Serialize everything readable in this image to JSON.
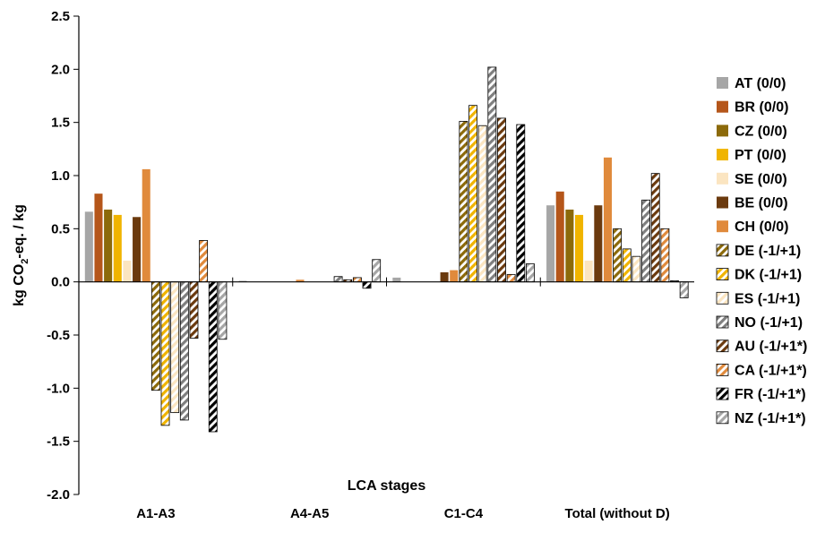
{
  "chart_data": {
    "type": "bar",
    "title": "",
    "xlabel": "LCA stages",
    "ylabel": "kg CO₂-eq. / kg",
    "ylabel_parts": {
      "before": "kg CO",
      "sub": "2",
      "after": "-eq. / kg"
    },
    "ylim": [
      -2.0,
      2.5
    ],
    "yticks": [
      "-2.0",
      "-1.5",
      "-1.0",
      "-0.5",
      "0.0",
      "0.5",
      "1.0",
      "1.5",
      "2.0",
      "2.5"
    ],
    "ytick_values": [
      -2.0,
      -1.5,
      -1.0,
      -0.5,
      0.0,
      0.5,
      1.0,
      1.5,
      2.0,
      2.5
    ],
    "grid": false,
    "legend_position": "right",
    "categories": [
      "A1-A3",
      "A4-A5",
      "C1-C4",
      "Total (without D)"
    ],
    "series": [
      {
        "name": "AT (0/0)",
        "color": "#a6a6a6",
        "pattern": "solid",
        "values": [
          0.66,
          0.01,
          0.04,
          0.72
        ]
      },
      {
        "name": "BR (0/0)",
        "color": "#b5561a",
        "pattern": "solid",
        "values": [
          0.83,
          0.0,
          0.0,
          0.85
        ]
      },
      {
        "name": "CZ (0/0)",
        "color": "#8c6a0a",
        "pattern": "solid",
        "values": [
          0.68,
          0.0,
          0.0,
          0.68
        ]
      },
      {
        "name": "PT (0/0)",
        "color": "#f0b400",
        "pattern": "solid",
        "values": [
          0.63,
          0.0,
          0.0,
          0.63
        ]
      },
      {
        "name": "SE (0/0)",
        "color": "#fbe5c1",
        "pattern": "solid",
        "values": [
          0.2,
          0.0,
          0.0,
          0.2
        ]
      },
      {
        "name": "BE (0/0)",
        "color": "#6b3a0e",
        "pattern": "solid",
        "values": [
          0.61,
          0.0,
          0.09,
          0.72
        ]
      },
      {
        "name": "CH (0/0)",
        "color": "#e08a3c",
        "pattern": "solid",
        "values": [
          1.06,
          0.02,
          0.11,
          1.17
        ]
      },
      {
        "name": "DE (-1/+1)",
        "color": "#8c6a0a",
        "pattern": "hatch",
        "values": [
          -1.02,
          0.0,
          1.51,
          0.5
        ]
      },
      {
        "name": "DK (-1/+1)",
        "color": "#f0b400",
        "pattern": "hatch",
        "values": [
          -1.35,
          0.0,
          1.66,
          0.31
        ]
      },
      {
        "name": "ES (-1/+1)",
        "color": "#fbe5c1",
        "pattern": "hatch",
        "values": [
          -1.23,
          0.0,
          1.47,
          0.24
        ]
      },
      {
        "name": "NO (-1/+1)",
        "color": "#7f7f7f",
        "pattern": "hatch",
        "values": [
          -1.3,
          0.05,
          2.02,
          0.77
        ]
      },
      {
        "name": "AU (-1/+1*)",
        "color": "#6b3a0e",
        "pattern": "hatch",
        "values": [
          -0.53,
          0.02,
          1.54,
          1.02
        ]
      },
      {
        "name": "CA (-1/+1*)",
        "color": "#e08a3c",
        "pattern": "hatch",
        "values": [
          0.39,
          0.04,
          0.07,
          0.5
        ]
      },
      {
        "name": "FR (-1/+1*)",
        "color": "#000000",
        "pattern": "hatch",
        "values": [
          -1.41,
          -0.06,
          1.48,
          0.01
        ]
      },
      {
        "name": "NZ (-1/+1*)",
        "color": "#a6a6a6",
        "pattern": "hatch",
        "values": [
          -0.54,
          0.21,
          0.17,
          -0.15
        ]
      }
    ]
  }
}
